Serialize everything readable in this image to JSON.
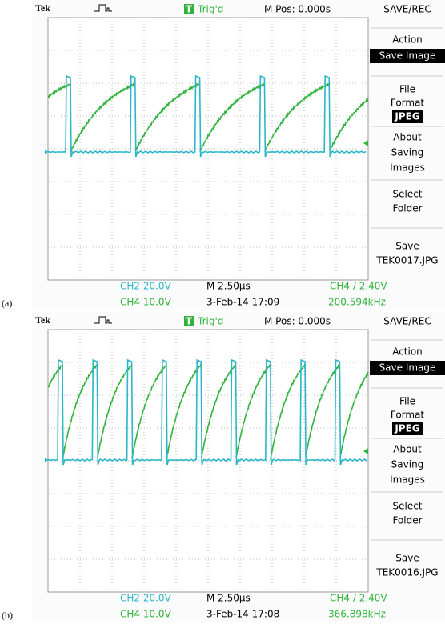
{
  "panels": [
    {
      "label": "(a)",
      "header": {
        "brand": "Tek",
        "trigger_icon": "T",
        "trigger": "Trig'd",
        "position": "M Pos: 0.000s"
      },
      "menu": {
        "title": "SAVE/REC",
        "action": "Action",
        "action_value": "Save Image",
        "file": "File",
        "format": "Format",
        "format_value": "JPEG",
        "about": [
          "About",
          "Saving",
          "Images"
        ],
        "select": [
          "Select",
          "Folder"
        ],
        "save": "Save",
        "save_file": "TEK0017.JPG"
      },
      "footer": {
        "ch2": "CH2 20.0V",
        "ch4": "CH4 10.0V",
        "timebase": "M 2.50µs",
        "date": "3-Feb-14 17:09",
        "trigger_level": "CH4 ∕ 2.40V",
        "frequency": "200.594kHz"
      }
    },
    {
      "label": "(b)",
      "header": {
        "brand": "Tek",
        "trigger_icon": "T",
        "trigger": "Trig'd",
        "position": "M Pos: 0.000s"
      },
      "menu": {
        "title": "SAVE/REC",
        "action": "Action",
        "action_value": "Save Image",
        "file": "File",
        "format": "Format",
        "format_value": "JPEG",
        "about": [
          "About",
          "Saving",
          "Images"
        ],
        "select": [
          "Select",
          "Folder"
        ],
        "save": "Save",
        "save_file": "TEK0016.JPG"
      },
      "footer": {
        "ch2": "CH2 20.0V",
        "ch4": "CH4 10.0V",
        "timebase": "M 2.50µs",
        "date": "3-Feb-14 17:08",
        "trigger_level": "CH4 ∕ 2.40V",
        "frequency": "366.898kHz"
      }
    }
  ]
}
